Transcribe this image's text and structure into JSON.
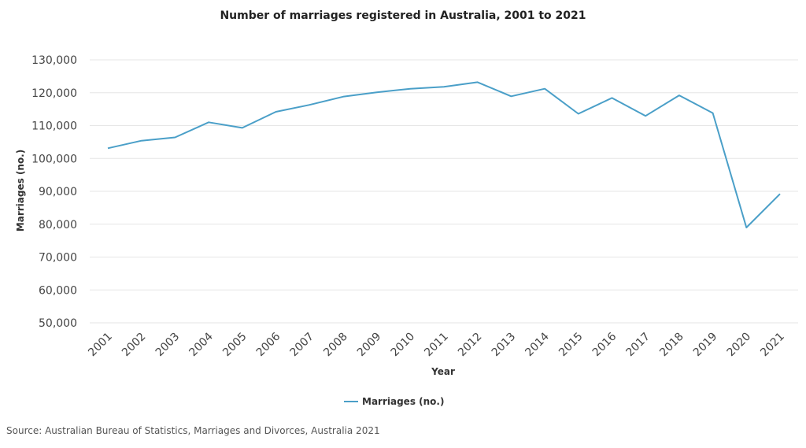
{
  "chart_data": {
    "type": "line",
    "title": "Number of marriages registered in Australia, 2001 to 2021",
    "xlabel": "Year",
    "ylabel": "Marriages (no.)",
    "categories": [
      "2001",
      "2002",
      "2003",
      "2004",
      "2005",
      "2006",
      "2007",
      "2008",
      "2009",
      "2010",
      "2011",
      "2012",
      "2013",
      "2014",
      "2015",
      "2016",
      "2017",
      "2018",
      "2019",
      "2020",
      "2021"
    ],
    "series": [
      {
        "name": "Marriages (no.)",
        "values": [
          103100,
          105400,
          106400,
          111000,
          109300,
          114200,
          116300,
          118800,
          120100,
          121200,
          121800,
          123200,
          118900,
          121200,
          113600,
          118400,
          112950,
          119200,
          113800,
          78990,
          89200
        ]
      }
    ],
    "ylim": [
      50000,
      130000
    ],
    "yticks": [
      50000,
      60000,
      70000,
      80000,
      90000,
      100000,
      110000,
      120000,
      130000
    ],
    "ytick_labels": [
      "50,000",
      "60,000",
      "70,000",
      "80,000",
      "90,000",
      "100,000",
      "110,000",
      "120,000",
      "130,000"
    ],
    "grid": true,
    "legend_position": "bottom-center",
    "line_color": "#4a9fc8",
    "source": "Source: Australian Bureau of Statistics, Marriages and Divorces, Australia 2021"
  }
}
